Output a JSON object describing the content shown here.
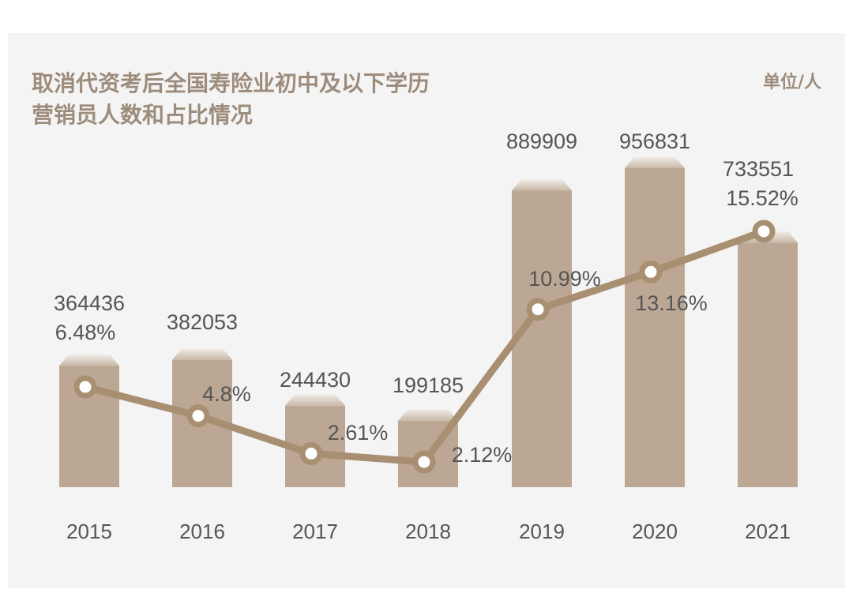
{
  "chart_data": {
    "type": "bar+line",
    "title_lines": [
      "取消代资考后全国寿险业初中及以下学历",
      "营销员人数和占比情况"
    ],
    "unit": "单位/人",
    "categories": [
      "2015",
      "2016",
      "2017",
      "2018",
      "2019",
      "2020",
      "2021"
    ],
    "series": [
      {
        "type": "bar",
        "values": [
          364436,
          382053,
          244430,
          199185,
          889909,
          956831,
          733551
        ],
        "labels": [
          "364436",
          "382053",
          "244430",
          "199185",
          "889909",
          "956831",
          "733551"
        ]
      },
      {
        "type": "line",
        "values": [
          6.48,
          4.8,
          2.61,
          2.12,
          10.99,
          13.16,
          15.52
        ],
        "labels": [
          "6.48%",
          "4.8%",
          "2.61%",
          "2.12%",
          "10.99%",
          "13.16%",
          "15.52%"
        ]
      }
    ],
    "grid": false,
    "colors": {
      "bar": "#bca794",
      "bar_cap_top": "#f0ebe6",
      "line": "#a88f72",
      "title": "#9d8c7b",
      "text": "#555555",
      "background": "#f4f4f4"
    }
  }
}
